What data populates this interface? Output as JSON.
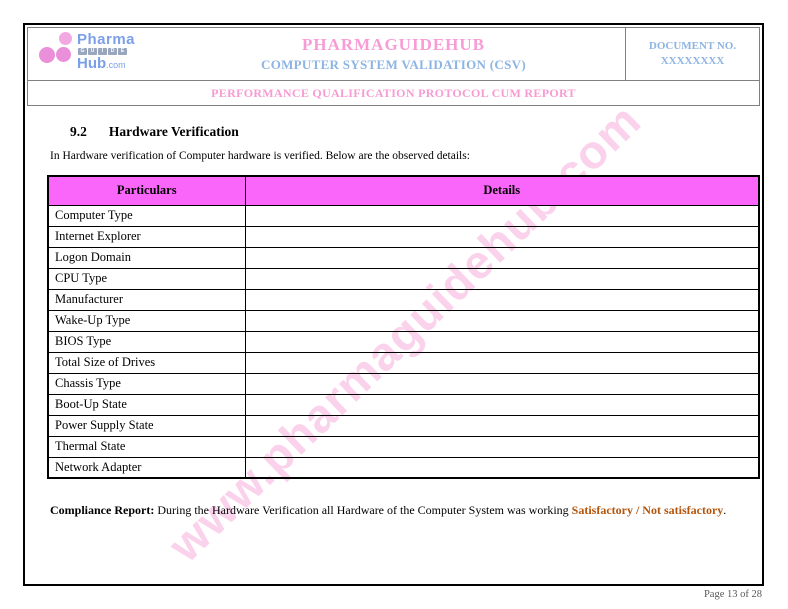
{
  "colors": {
    "table_header_bg": "#fa66fa",
    "title_pink": "#f99bd5",
    "heading_blue": "#8db4e2",
    "band_pink": "#f89bd3",
    "highlight_orange": "#b3540b",
    "watermark_pink": "#f6aedc"
  },
  "header": {
    "logo": {
      "pharma": "Pharma",
      "guide_letters": [
        "G",
        "U",
        "I",
        "D",
        "E"
      ],
      "hub": "Hub",
      "dotcom": ".com"
    },
    "title": "PHARMAGUIDEHUB",
    "subtitle": "COMPUTER SYSTEM VALIDATION (CSV)",
    "document_no_label": "DOCUMENT NO.",
    "document_no_value": "XXXXXXXX",
    "band": "PERFORMANCE QUALIFICATION PROTOCOL CUM REPORT"
  },
  "section": {
    "number": "9.2",
    "title": "Hardware Verification"
  },
  "intro": "In Hardware verification of Computer hardware is verified. Below are the observed details:",
  "table": {
    "headers": [
      "Particulars",
      "Details"
    ],
    "rows": [
      [
        "Computer Type",
        ""
      ],
      [
        "Internet Explorer",
        ""
      ],
      [
        "Logon Domain",
        ""
      ],
      [
        "CPU Type",
        ""
      ],
      [
        "Manufacturer",
        ""
      ],
      [
        "Wake-Up Type",
        ""
      ],
      [
        "BIOS Type",
        ""
      ],
      [
        "Total Size of Drives",
        ""
      ],
      [
        "Chassis Type",
        ""
      ],
      [
        "Boot-Up State",
        ""
      ],
      [
        "Power Supply State",
        ""
      ],
      [
        "Thermal State",
        ""
      ],
      [
        "Network Adapter",
        ""
      ]
    ]
  },
  "compliance": {
    "label": "Compliance Report:",
    "text": " During the Hardware Verification all Hardware of the Computer System was working ",
    "highlight": "Satisfactory / Not satisfactory",
    "suffix": "."
  },
  "watermark": "www.pharmaguidehub.com",
  "footer": {
    "page_label": "Page 13 of 28"
  }
}
